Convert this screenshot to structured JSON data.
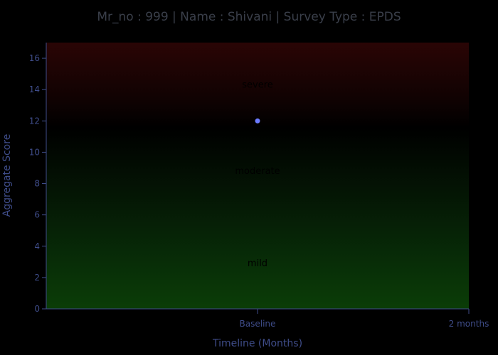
{
  "chart_data": {
    "type": "scatter",
    "title": "Mr_no : 999 | Name : Shivani | Survey Type : EPDS",
    "xlabel": "Timeline (Months)",
    "ylabel": "Aggregate Score",
    "categories": [
      "Baseline",
      "2 months"
    ],
    "ylim": [
      0,
      17
    ],
    "yticks": [
      0,
      2,
      4,
      6,
      8,
      10,
      12,
      14,
      16
    ],
    "grid": false,
    "series": [
      {
        "x": [
          "Baseline"
        ],
        "values": [
          12
        ],
        "color": "#6c7bff"
      }
    ],
    "bands": [
      {
        "label": "mild",
        "from": 0,
        "to": 4,
        "color": "#0a3a06"
      },
      {
        "label": "moderate",
        "from": 4,
        "to": 13,
        "color": "#041f04"
      },
      {
        "label": "severe",
        "from": 13,
        "to": 17,
        "color": "#2a0505"
      }
    ]
  }
}
